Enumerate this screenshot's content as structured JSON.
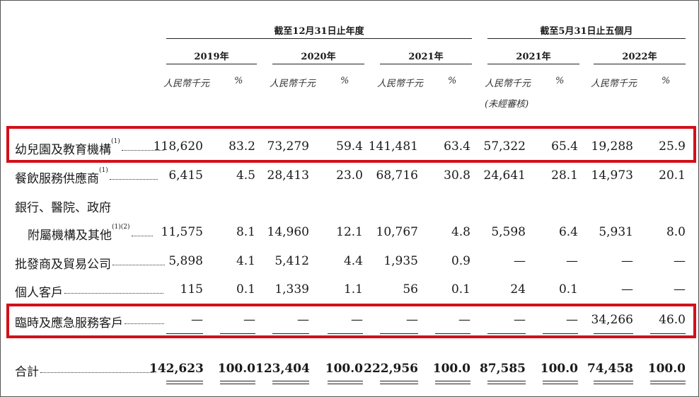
{
  "header": {
    "group_year_end": "截至12月31日止年度",
    "group_five_months": "截至5月31日止五個月",
    "years": [
      "2019年",
      "2020年",
      "2021年",
      "2021年",
      "2022年"
    ],
    "unit_rmb": "人民幣千元",
    "unit_pct": "%",
    "unaudited": "(未經審核)"
  },
  "rows": [
    {
      "label": "幼兒園及教育機構",
      "note": "(1)",
      "values": [
        "118,620",
        "83.2",
        "73,279",
        "59.4",
        "141,481",
        "63.4",
        "57,322",
        "65.4",
        "19,288",
        "25.9"
      ],
      "highlighted": true
    },
    {
      "label": "餐飲服務供應商",
      "note": "(1)",
      "values": [
        "6,415",
        "4.5",
        "28,413",
        "23.0",
        "68,716",
        "30.8",
        "24,641",
        "28.1",
        "14,973",
        "20.1"
      ],
      "highlighted": false
    },
    {
      "label_line1": "銀行、醫院、政府",
      "label": "附屬機構及其他",
      "note": "(1)(2)",
      "values": [
        "11,575",
        "8.1",
        "14,960",
        "12.1",
        "10,767",
        "4.8",
        "5,598",
        "6.4",
        "5,931",
        "8.0"
      ],
      "highlighted": false
    },
    {
      "label": "批發商及貿易公司",
      "note": "",
      "values": [
        "5,898",
        "4.1",
        "5,412",
        "4.4",
        "1,935",
        "0.9",
        "—",
        "—",
        "—",
        "—"
      ],
      "highlighted": false
    },
    {
      "label": "個人客戶",
      "note": "",
      "values": [
        "115",
        "0.1",
        "1,339",
        "1.1",
        "56",
        "0.1",
        "24",
        "0.1",
        "—",
        "—"
      ],
      "highlighted": false
    },
    {
      "label": "臨時及應急服務客戶",
      "note": "",
      "values": [
        "—",
        "—",
        "—",
        "—",
        "—",
        "—",
        "—",
        "—",
        "34,266",
        "46.0"
      ],
      "highlighted": true
    }
  ],
  "total": {
    "label": "合計",
    "values": [
      "142,623",
      "100.0",
      "123,404",
      "100.0",
      "222,956",
      "100.0",
      "87,585",
      "100.0",
      "74,458",
      "100.0"
    ]
  },
  "colors": {
    "highlight": "#d2101a",
    "text": "#1a1a1a"
  }
}
